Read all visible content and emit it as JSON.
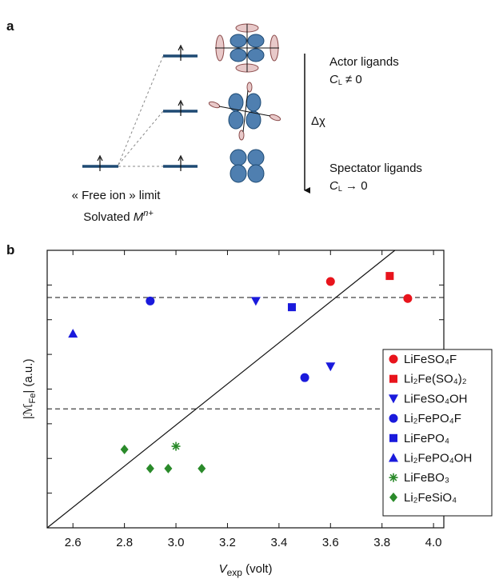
{
  "diagram": {
    "panel_label": "a",
    "actor": "Actor ligands",
    "actor_c": {
      "main": "C",
      "sub": "L",
      "rest": " ≠ 0"
    },
    "delta": "Δχ",
    "spectator": "Spectator ligands",
    "spectator_c": {
      "main": "C",
      "sub": "L",
      "rest": " → 0"
    },
    "free_ion": "« Free ion » limit",
    "solvated": {
      "main": "Solvated ",
      "ion": "M",
      "sup": "n+"
    }
  },
  "chart_data": {
    "type": "scatter",
    "panel_label": "b",
    "xlabel": {
      "main": "V",
      "sub": "exp",
      "rest": " (volt)"
    },
    "ylabel": {
      "main": "|ℳ",
      "sub": "Fe",
      "rest": "| (a.u.)"
    },
    "xlim": [
      2.5,
      4.04
    ],
    "ylim": [
      0,
      8
    ],
    "xticks": [
      2.6,
      2.8,
      {
        "value": 3,
        "label": "3.0"
      },
      3.2,
      3.4,
      3.6,
      3.8,
      {
        "value": 4,
        "label": "4.0"
      }
    ],
    "yticks": [
      1,
      2,
      3,
      4,
      5,
      6,
      7
    ],
    "hlines": [
      6.64,
      3.43
    ],
    "reference_line": {
      "x": [
        2.5,
        3.85
      ],
      "y": [
        0,
        8
      ]
    },
    "legend": "right",
    "series": [
      {
        "name": "LiFeSO₄F",
        "color": "#e8141c",
        "marker": "circle",
        "x": [
          3.6,
          3.9
        ],
        "values": [
          7.1,
          6.61
        ]
      },
      {
        "name": "Li₂Fe(SO₄)₂",
        "color": "#e8141c",
        "marker": "square",
        "x": [
          3.83
        ],
        "values": [
          7.26
        ]
      },
      {
        "name": "LiFeSO₄OH",
        "color": "#1a1adc",
        "marker": "triangle-down",
        "x": [
          3.31,
          3.6
        ],
        "values": [
          6.54,
          4.65
        ]
      },
      {
        "name": "Li₂FePO₄F",
        "color": "#1a1adc",
        "marker": "circle",
        "x": [
          2.9,
          3.5
        ],
        "values": [
          6.54,
          4.33
        ]
      },
      {
        "name": "LiFePO₄",
        "color": "#1a1adc",
        "marker": "square",
        "x": [
          3.45
        ],
        "values": [
          6.36
        ]
      },
      {
        "name": "Li₂FePO₄OH",
        "color": "#1a1adc",
        "marker": "triangle-up",
        "x": [
          2.6
        ],
        "values": [
          5.6
        ]
      },
      {
        "name": "LiFeBO₃",
        "color": "#2a8a2a",
        "marker": "asterisk",
        "x": [
          3.0
        ],
        "values": [
          2.35
        ]
      },
      {
        "name": "Li₂FeSiO₄",
        "color": "#2a8a2a",
        "marker": "diamond",
        "x": [
          2.8,
          2.9,
          2.97,
          3.1
        ],
        "values": [
          2.26,
          1.71,
          1.71,
          1.71
        ]
      }
    ]
  }
}
